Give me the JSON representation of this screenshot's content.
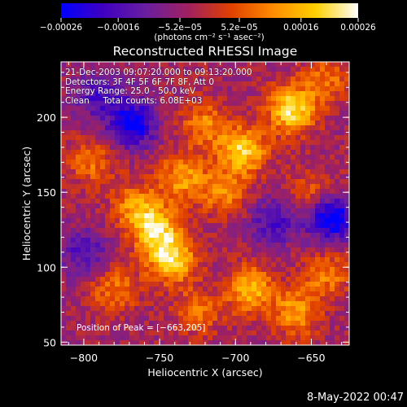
{
  "chart_data": {
    "type": "heatmap",
    "title": "Reconstructed RHESSI Image",
    "xlabel": "Heliocentric X (arcsec)",
    "ylabel": "Heliocentric Y (arcsec)",
    "xlim": [
      -815,
      -625
    ],
    "ylim": [
      48,
      237
    ],
    "x_ticks": [
      -800,
      -750,
      -700,
      -650
    ],
    "x_tick_labels": [
      "−800",
      "−750",
      "−700",
      "−650"
    ],
    "y_ticks": [
      50,
      100,
      150,
      200
    ],
    "y_tick_labels": [
      "50",
      "100",
      "150",
      "200"
    ],
    "colorbar": {
      "range": [
        -0.00026,
        0.00026
      ],
      "ticks": [
        -0.00026,
        -0.00016,
        -5.2e-05,
        5.2e-05,
        0.00016,
        0.00026
      ],
      "tick_labels": [
        "−0.00026",
        "−0.00016",
        "−5.2e−05",
        "5.2e−05",
        "0.00016",
        "0.00026"
      ],
      "unit_label": "(photons cm⁻² s⁻¹ asec⁻²)",
      "colormap": [
        "#0000ff",
        "#4000c0",
        "#6a1fa0",
        "#a02060",
        "#e04000",
        "#ff8c00",
        "#ffd000",
        "#ffffff"
      ]
    },
    "sources": [
      {
        "x": -663,
        "y": 205,
        "level": 1.0
      },
      {
        "x": -695,
        "y": 178,
        "level": 0.9
      },
      {
        "x": -720,
        "y": 195,
        "level": 0.55
      },
      {
        "x": -752,
        "y": 125,
        "level": 0.85
      },
      {
        "x": -742,
        "y": 105,
        "level": 0.95
      },
      {
        "x": -765,
        "y": 140,
        "level": 0.6
      },
      {
        "x": -735,
        "y": 160,
        "level": 0.65
      },
      {
        "x": -708,
        "y": 150,
        "level": 0.55
      },
      {
        "x": -690,
        "y": 85,
        "level": 0.75
      },
      {
        "x": -660,
        "y": 70,
        "level": 0.65
      },
      {
        "x": -640,
        "y": 95,
        "level": 0.5
      },
      {
        "x": -795,
        "y": 170,
        "level": 0.45
      },
      {
        "x": -780,
        "y": 85,
        "level": 0.5
      },
      {
        "x": -725,
        "y": 70,
        "level": 0.45
      },
      {
        "x": -650,
        "y": 150,
        "level": 0.4
      },
      {
        "x": -640,
        "y": 225,
        "level": 0.45
      }
    ],
    "negative_regions": [
      {
        "x": -768,
        "y": 196,
        "level": -0.85
      },
      {
        "x": -637,
        "y": 133,
        "level": -0.95
      },
      {
        "x": -790,
        "y": 215,
        "level": -0.5
      },
      {
        "x": -800,
        "y": 110,
        "level": -0.45
      },
      {
        "x": -675,
        "y": 130,
        "level": -0.5
      }
    ]
  },
  "info": {
    "time_range": "21-Dec-2003 09:07:20.000 to 09:13:20.000",
    "detectors": "Detectors: 3F 4F 5F 6F 7F 8F, Att 0",
    "energy": "Energy Range: 25.0 - 50.0 keV",
    "method": "Clean     Total counts: 6.08E+03",
    "peak": "Position of Peak = [−663,205]"
  },
  "footer": {
    "date": "8-May-2022 00:47"
  }
}
